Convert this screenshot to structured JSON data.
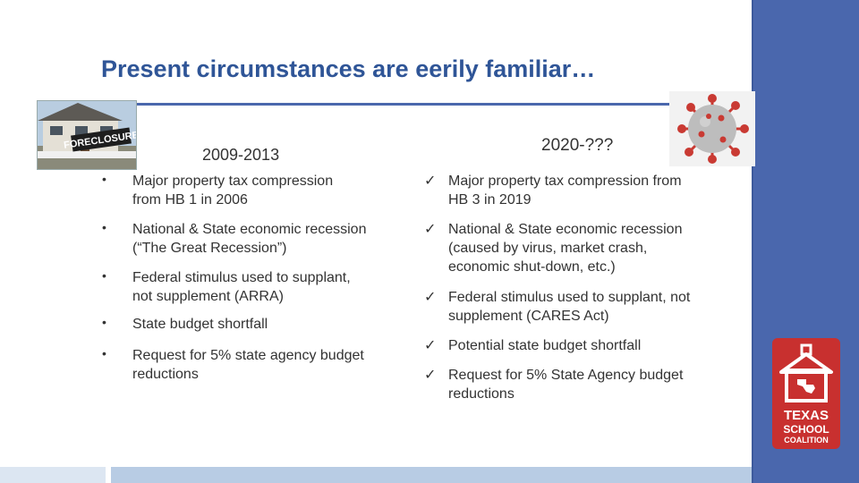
{
  "slide": {
    "title": "Present circumstances are eerily familiar…"
  },
  "images": {
    "house_sign_text": "FORECLOSURE"
  },
  "left_column": {
    "heading": "2009-2013",
    "bullet_glyph": "•",
    "items": [
      [
        "Major property tax compression",
        "from HB 1 in 2006"
      ],
      [
        "National & State economic recession",
        "(“The Great Recession”)"
      ],
      [
        "Federal stimulus used to supplant,",
        "not supplement  (ARRA)"
      ],
      [
        "State budget shortfall"
      ],
      [
        "Request for 5% state agency budget",
        "reductions"
      ]
    ]
  },
  "right_column": {
    "heading": "2020-???",
    "check_glyph": "✓",
    "items": [
      [
        "Major property tax compression from",
        "HB 3 in 2019"
      ],
      [
        "National & State economic recession",
        "(caused by virus, market crash,",
        "economic shut-down, etc.)"
      ],
      [
        "Federal stimulus used to supplant, not",
        "supplement (CARES Act)"
      ],
      [
        "Potential state budget shortfall"
      ],
      [
        "Request for 5% State Agency budget",
        "reductions"
      ]
    ]
  },
  "logo": {
    "line1": "TEXAS",
    "line2": "SCHOOL",
    "line3": "COALITION"
  },
  "colors": {
    "title": "#2f5597",
    "accent_bar": "#4a67ad",
    "logo_red": "#c8302f"
  }
}
